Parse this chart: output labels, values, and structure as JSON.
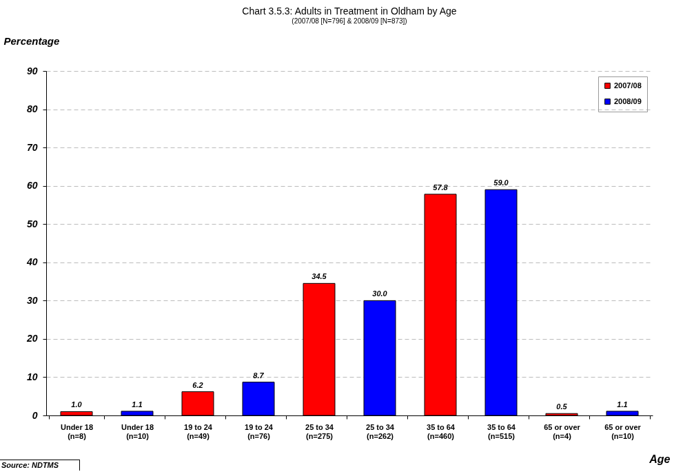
{
  "chart_data": {
    "type": "bar",
    "title": "Chart 3.5.3: Adults in Treatment in Oldham by Age",
    "subtitle": "(2007/08 [N=796] & 2008/09 [N=873])",
    "xlabel": "Age",
    "ylabel": "Percentage",
    "categories": [
      "Under 18 (n=8)",
      "Under 18 (n=10)",
      "19 to 24 (n=49)",
      "19 to 24 (n=76)",
      "25 to 34 (n=275)",
      "25 to 34 (n=262)",
      "35 to 64 (n=460)",
      "35 to 64 (n=515)",
      "65 or over (n=4)",
      "65 or over (n=10)"
    ],
    "series": [
      {
        "name": "2007/08",
        "color": "#ff0000",
        "values": [
          1.0,
          null,
          6.2,
          null,
          34.5,
          null,
          57.8,
          null,
          0.5,
          null
        ],
        "value_labels": [
          "1.0",
          null,
          "6.2",
          null,
          "34.5",
          null,
          "57.8",
          null,
          "0.5",
          null
        ]
      },
      {
        "name": "2008/09",
        "color": "#0000ff",
        "values": [
          null,
          1.1,
          null,
          8.7,
          null,
          30.0,
          null,
          59.0,
          null,
          1.1
        ],
        "value_labels": [
          null,
          "1.1",
          null,
          "8.7",
          null,
          "30.0",
          null,
          "59.0",
          null,
          "1.1"
        ]
      }
    ],
    "ylim": [
      0,
      90
    ],
    "yticks": [
      0,
      10,
      20,
      30,
      40,
      50,
      60,
      70,
      80,
      90
    ],
    "grid": "y",
    "legend": "top right",
    "annotations": [
      "Source: NDTMS"
    ]
  }
}
